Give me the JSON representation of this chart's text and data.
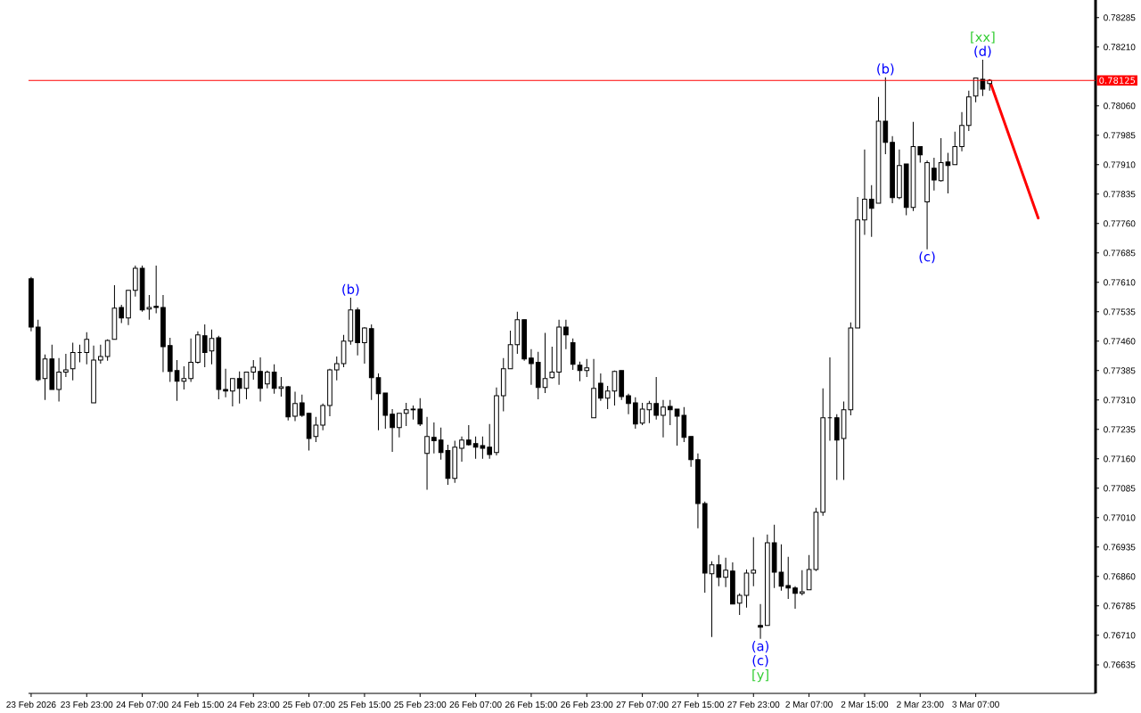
{
  "chart_data": {
    "type": "candlestick",
    "categories": [
      "23 Feb 2026",
      null,
      null,
      null,
      null,
      null,
      null,
      null,
      "23 Feb 23:00",
      null,
      null,
      null,
      null,
      null,
      null,
      null,
      "24 Feb 07:00",
      null,
      null,
      null,
      null,
      null,
      null,
      null,
      "24 Feb 15:00",
      null,
      null,
      null,
      null,
      null,
      null,
      null,
      "24 Feb 23:00",
      null,
      null,
      null,
      null,
      null,
      null,
      null,
      "25 Feb 07:00",
      null,
      null,
      null,
      null,
      null,
      null,
      null,
      "25 Feb 15:00",
      null,
      null,
      null,
      null,
      null,
      null,
      null,
      "25 Feb 23:00",
      null,
      null,
      null,
      null,
      null,
      null,
      null,
      "26 Feb 07:00",
      null,
      null,
      null,
      null,
      null,
      null,
      null,
      "26 Feb 15:00",
      null,
      null,
      null,
      null,
      null,
      null,
      null,
      "26 Feb 23:00",
      null,
      null,
      null,
      null,
      null,
      null,
      null,
      "27 Feb 07:00",
      null,
      null,
      null,
      null,
      null,
      null,
      null,
      "27 Feb 15:00",
      null,
      null,
      null,
      null,
      null,
      null,
      null,
      "27 Feb 23:00",
      null,
      null,
      null,
      null,
      null,
      null,
      null,
      "2 Mar 07:00",
      null,
      null,
      null,
      null,
      null,
      null,
      null,
      "2 Mar 15:00",
      null,
      null,
      null,
      null,
      null,
      null,
      null,
      "2 Mar 23:00",
      null,
      null,
      null,
      null,
      null,
      null,
      null,
      "3 Mar 07:00",
      null,
      null,
      null,
      null,
      null,
      null,
      null,
      null,
      null,
      null,
      null,
      null,
      null,
      null,
      null,
      null,
      null
    ],
    "ohlc": [
      [
        0.77619,
        0.77624,
        0.77485,
        0.77496
      ],
      [
        0.77496,
        0.77515,
        0.77358,
        0.77362
      ],
      [
        0.77365,
        0.77426,
        0.7731,
        0.77415
      ],
      [
        0.77415,
        0.77451,
        0.77337,
        0.77337
      ],
      [
        0.77337,
        0.77417,
        0.77306,
        0.77381
      ],
      [
        0.77381,
        0.77428,
        0.77369,
        0.77387
      ],
      [
        0.7739,
        0.77456,
        0.7736,
        0.77431
      ],
      [
        0.77431,
        0.77451,
        0.77406,
        0.77431
      ],
      [
        0.77431,
        0.77483,
        0.77401,
        0.77465
      ],
      [
        0.77303,
        0.77449,
        0.77303,
        0.77412
      ],
      [
        0.77412,
        0.77451,
        0.77403,
        0.77421
      ],
      [
        0.77421,
        0.77465,
        0.7741,
        0.77462
      ],
      [
        0.77465,
        0.77603,
        0.77465,
        0.77544
      ],
      [
        0.77546,
        0.77553,
        0.77506,
        0.77519
      ],
      [
        0.77519,
        0.7759,
        0.77501,
        0.7759
      ],
      [
        0.7759,
        0.77653,
        0.77574,
        0.77646
      ],
      [
        0.77646,
        0.77653,
        0.77535,
        0.7754
      ],
      [
        0.77542,
        0.77578,
        0.77515,
        0.77546
      ],
      [
        0.77549,
        0.77653,
        0.77531,
        0.77546
      ],
      [
        0.77546,
        0.77578,
        0.77381,
        0.77446
      ],
      [
        0.77449,
        0.77469,
        0.77356,
        0.77383
      ],
      [
        0.77385,
        0.77412,
        0.77308,
        0.77358
      ],
      [
        0.77358,
        0.77396,
        0.77337,
        0.77365
      ],
      [
        0.77365,
        0.77467,
        0.77356,
        0.77406
      ],
      [
        0.77406,
        0.77485,
        0.77403,
        0.77476
      ],
      [
        0.77474,
        0.77503,
        0.77394,
        0.77431
      ],
      [
        0.77435,
        0.7749,
        0.77401,
        0.77467
      ],
      [
        0.77469,
        0.77474,
        0.77312,
        0.77337
      ],
      [
        0.77337,
        0.7739,
        0.77317,
        0.77333
      ],
      [
        0.77333,
        0.77365,
        0.77294,
        0.77365
      ],
      [
        0.77365,
        0.77383,
        0.77301,
        0.7734
      ],
      [
        0.7734,
        0.77381,
        0.77312,
        0.77381
      ],
      [
        0.77381,
        0.77412,
        0.77362,
        0.77394
      ],
      [
        0.77383,
        0.77419,
        0.77306,
        0.7734
      ],
      [
        0.77351,
        0.77385,
        0.7734,
        0.77381
      ],
      [
        0.77381,
        0.77401,
        0.77326,
        0.7734
      ],
      [
        0.7734,
        0.77369,
        0.77319,
        0.77344
      ],
      [
        0.77344,
        0.77346,
        0.77258,
        0.77267
      ],
      [
        0.77269,
        0.77331,
        0.77256,
        0.77301
      ],
      [
        0.77303,
        0.77324,
        0.77267,
        0.77271
      ],
      [
        0.77276,
        0.77278,
        0.77181,
        0.77212
      ],
      [
        0.77217,
        0.77267,
        0.77203,
        0.77246
      ],
      [
        0.77246,
        0.77301,
        0.77233,
        0.77296
      ],
      [
        0.77296,
        0.7739,
        0.77269,
        0.77387
      ],
      [
        0.77387,
        0.77421,
        0.7736,
        0.77403
      ],
      [
        0.77403,
        0.77476,
        0.77394,
        0.7746
      ],
      [
        0.7746,
        0.77571,
        0.77451,
        0.7754
      ],
      [
        0.7754,
        0.77546,
        0.77424,
        0.77456
      ],
      [
        0.77456,
        0.77496,
        0.77403,
        0.77494
      ],
      [
        0.77492,
        0.77503,
        0.7731,
        0.77367
      ],
      [
        0.77367,
        0.77378,
        0.77233,
        0.77326
      ],
      [
        0.77328,
        0.77328,
        0.77237,
        0.77271
      ],
      [
        0.77274,
        0.77287,
        0.77178,
        0.7724
      ],
      [
        0.7724,
        0.77276,
        0.77215,
        0.77276
      ],
      [
        0.77276,
        0.77303,
        0.77244,
        0.77285
      ],
      [
        0.77287,
        0.77296,
        0.7726,
        0.77285
      ],
      [
        0.77287,
        0.77315,
        0.77244,
        0.77249
      ],
      [
        0.77174,
        0.77267,
        0.77081,
        0.77217
      ],
      [
        0.77215,
        0.77253,
        0.77174,
        0.77206
      ],
      [
        0.77208,
        0.7724,
        0.77158,
        0.77176
      ],
      [
        0.77181,
        0.77196,
        0.77094,
        0.7711
      ],
      [
        0.7711,
        0.77206,
        0.77099,
        0.7719
      ],
      [
        0.77187,
        0.77217,
        0.77153,
        0.77208
      ],
      [
        0.77208,
        0.77246,
        0.77194,
        0.77196
      ],
      [
        0.77199,
        0.77217,
        0.7716,
        0.7719
      ],
      [
        0.77194,
        0.77217,
        0.7716,
        0.77187
      ],
      [
        0.7719,
        0.77249,
        0.7716,
        0.77171
      ],
      [
        0.77176,
        0.77342,
        0.77169,
        0.77321
      ],
      [
        0.77321,
        0.77417,
        0.77281,
        0.7739
      ],
      [
        0.7739,
        0.77487,
        0.7739,
        0.77451
      ],
      [
        0.77451,
        0.77535,
        0.77428,
        0.77515
      ],
      [
        0.77515,
        0.77515,
        0.7741,
        0.77415
      ],
      [
        0.77417,
        0.7744,
        0.77349,
        0.77403
      ],
      [
        0.77406,
        0.77433,
        0.77312,
        0.77342
      ],
      [
        0.77342,
        0.77481,
        0.77328,
        0.77365
      ],
      [
        0.77367,
        0.77446,
        0.77365,
        0.77381
      ],
      [
        0.77381,
        0.77515,
        0.77349,
        0.77496
      ],
      [
        0.77496,
        0.77515,
        0.7744,
        0.77476
      ],
      [
        0.77456,
        0.77467,
        0.77387,
        0.77401
      ],
      [
        0.77399,
        0.77408,
        0.77358,
        0.77385
      ],
      [
        0.77385,
        0.77415,
        0.77369,
        0.77392
      ],
      [
        0.77265,
        0.77415,
        0.77265,
        0.7734
      ],
      [
        0.77353,
        0.77378,
        0.77308,
        0.77315
      ],
      [
        0.77315,
        0.77346,
        0.77287,
        0.77333
      ],
      [
        0.77333,
        0.77385,
        0.77296,
        0.77383
      ],
      [
        0.77385,
        0.77385,
        0.7731,
        0.77319
      ],
      [
        0.77321,
        0.77326,
        0.77274,
        0.77301
      ],
      [
        0.77303,
        0.77317,
        0.77237,
        0.77249
      ],
      [
        0.77251,
        0.77303,
        0.77246,
        0.77287
      ],
      [
        0.77285,
        0.77308,
        0.77251,
        0.77301
      ],
      [
        0.77301,
        0.77369,
        0.7726,
        0.77271
      ],
      [
        0.77271,
        0.7731,
        0.77215,
        0.77292
      ],
      [
        0.77294,
        0.7731,
        0.77246,
        0.77285
      ],
      [
        0.77287,
        0.77287,
        0.77194,
        0.77269
      ],
      [
        0.77271,
        0.77292,
        0.77203,
        0.77215
      ],
      [
        0.77217,
        0.77217,
        0.7714,
        0.77158
      ],
      [
        0.77158,
        0.77174,
        0.76983,
        0.77046
      ],
      [
        0.77046,
        0.77051,
        0.76819,
        0.76869
      ],
      [
        0.76867,
        0.76899,
        0.76706,
        0.7689
      ],
      [
        0.7689,
        0.76915,
        0.76835,
        0.76858
      ],
      [
        0.76858,
        0.76908,
        0.76833,
        0.76876
      ],
      [
        0.76874,
        0.76896,
        0.7679,
        0.7679
      ],
      [
        0.76792,
        0.76817,
        0.76762,
        0.76812
      ],
      [
        0.76812,
        0.76878,
        0.76781,
        0.76869
      ],
      [
        0.76869,
        0.7696,
        0.76835,
        0.76876
      ],
      [
        0.76735,
        0.7679,
        0.76701,
        0.76731
      ],
      [
        0.76735,
        0.76967,
        0.76735,
        0.76946
      ],
      [
        0.76946,
        0.76992,
        0.76831,
        0.76871
      ],
      [
        0.76871,
        0.76942,
        0.76824,
        0.76835
      ],
      [
        0.76837,
        0.7691,
        0.76803,
        0.76831
      ],
      [
        0.76831,
        0.76835,
        0.76778,
        0.76817
      ],
      [
        0.76817,
        0.76876,
        0.76812,
        0.76821
      ],
      [
        0.76826,
        0.76915,
        0.76826,
        0.76878
      ],
      [
        0.76878,
        0.77035,
        0.76874,
        0.77024
      ],
      [
        0.77024,
        0.7734,
        0.77015,
        0.77265
      ],
      [
        0.77265,
        0.77419,
        0.77206,
        0.77265
      ],
      [
        0.77265,
        0.77274,
        0.77106,
        0.77208
      ],
      [
        0.77212,
        0.77306,
        0.77106,
        0.77285
      ],
      [
        0.77285,
        0.77508,
        0.77271,
        0.77494
      ],
      [
        0.77494,
        0.77828,
        0.77494,
        0.77769
      ],
      [
        0.77769,
        0.77949,
        0.77731,
        0.77822
      ],
      [
        0.77822,
        0.77858,
        0.77726,
        0.77799
      ],
      [
        0.77812,
        0.78083,
        0.77812,
        0.78021
      ],
      [
        0.78021,
        0.78133,
        0.77937,
        0.77967
      ],
      [
        0.77967,
        0.77983,
        0.77812,
        0.77826
      ],
      [
        0.77826,
        0.77949,
        0.77822,
        0.77908
      ],
      [
        0.77912,
        0.77912,
        0.77781,
        0.77801
      ],
      [
        0.77801,
        0.78019,
        0.77792,
        0.77956
      ],
      [
        0.77956,
        0.77956,
        0.77915,
        0.77935
      ],
      [
        0.77815,
        0.77921,
        0.77694,
        0.77915
      ],
      [
        0.77901,
        0.77928,
        0.77844,
        0.77871
      ],
      [
        0.77869,
        0.77978,
        0.77867,
        0.77915
      ],
      [
        0.77917,
        0.7794,
        0.77837,
        0.77908
      ],
      [
        0.7791,
        0.77994,
        0.7791,
        0.77956
      ],
      [
        0.77956,
        0.78044,
        0.77944,
        0.7801
      ],
      [
        0.7801,
        0.78099,
        0.77996,
        0.78083
      ],
      [
        0.78085,
        0.78131,
        0.78069,
        0.78131
      ],
      [
        0.78128,
        0.78178,
        0.78085,
        0.78103
      ],
      [
        0.78117,
        0.78127,
        0.78099,
        0.78125
      ],
      null,
      null,
      null,
      null,
      null,
      null,
      null,
      null,
      null,
      null,
      null,
      null,
      null,
      null,
      null
    ],
    "series": [
      {
        "type": "line",
        "color": "#ff0000",
        "values": [
          null,
          null,
          null,
          null,
          null,
          null,
          null,
          null,
          null,
          null,
          null,
          null,
          null,
          null,
          null,
          null,
          null,
          null,
          null,
          null,
          null,
          null,
          null,
          null,
          null,
          null,
          null,
          null,
          null,
          null,
          null,
          null,
          null,
          null,
          null,
          null,
          null,
          null,
          null,
          null,
          null,
          null,
          null,
          null,
          null,
          null,
          null,
          null,
          null,
          null,
          null,
          null,
          null,
          null,
          null,
          null,
          null,
          null,
          null,
          null,
          null,
          null,
          null,
          null,
          null,
          null,
          null,
          null,
          null,
          null,
          null,
          null,
          null,
          null,
          null,
          null,
          null,
          null,
          null,
          null,
          null,
          null,
          null,
          null,
          null,
          null,
          null,
          null,
          null,
          null,
          null,
          null,
          null,
          null,
          null,
          null,
          null,
          null,
          null,
          null,
          null,
          null,
          null,
          null,
          null,
          null,
          null,
          null,
          null,
          null,
          null,
          null,
          null,
          null,
          null,
          null,
          null,
          null,
          null,
          null,
          null,
          null,
          null,
          null,
          null,
          null,
          null,
          null,
          null,
          null,
          null,
          null,
          null,
          null,
          null,
          null,
          null,
          null,
          0.78125,
          null,
          null,
          null,
          null,
          null,
          null,
          0.77774,
          null,
          null,
          null,
          null,
          null,
          null,
          null,
          null
        ]
      }
    ],
    "ylim": [
      0.76562,
      0.7833
    ],
    "yticks": [
      {
        "value": 0.78285,
        "label": "0.78285"
      },
      {
        "value": 0.7821,
        "label": "0.78210"
      },
      {
        "value": 0.7806,
        "label": "0.78060"
      },
      {
        "value": 0.77985,
        "label": "0.77985"
      },
      {
        "value": 0.7791,
        "label": "0.77910"
      },
      {
        "value": 0.77835,
        "label": "0.77835"
      },
      {
        "value": 0.7776,
        "label": "0.77760"
      },
      {
        "value": 0.77685,
        "label": "0.77685"
      },
      {
        "value": 0.7761,
        "label": "0.77610"
      },
      {
        "value": 0.77535,
        "label": "0.77535"
      },
      {
        "value": 0.7746,
        "label": "0.77460"
      },
      {
        "value": 0.77385,
        "label": "0.77385"
      },
      {
        "value": 0.7731,
        "label": "0.77310"
      },
      {
        "value": 0.77235,
        "label": "0.77235"
      },
      {
        "value": 0.7716,
        "label": "0.77160"
      },
      {
        "value": 0.77085,
        "label": "0.77085"
      },
      {
        "value": 0.7701,
        "label": "0.77010"
      },
      {
        "value": 0.76935,
        "label": "0.76935"
      },
      {
        "value": 0.7686,
        "label": "0.76860"
      },
      {
        "value": 0.76785,
        "label": "0.76785"
      },
      {
        "value": 0.7671,
        "label": "0.76710"
      },
      {
        "value": 0.76635,
        "label": "0.76635"
      }
    ],
    "ref_lines": [
      {
        "axis": "y",
        "value": 0.78125,
        "label": "0.78125",
        "color": "#ff0000"
      }
    ],
    "annotations": [
      {
        "text": "(b)",
        "y": 0.77571
      },
      {
        "text": "(a)",
        "y": 0.76701
      },
      {
        "text": "(c)",
        "y": 0.76701
      },
      {
        "text": "[y]",
        "y": 0.76701
      },
      {
        "text": "(b)",
        "y": 0.78133
      },
      {
        "text": "(c)",
        "y": 0.77694
      },
      {
        "text": "(d)",
        "y": 0.78178
      },
      {
        "text": "[xx]",
        "y": 0.78178
      }
    ]
  }
}
